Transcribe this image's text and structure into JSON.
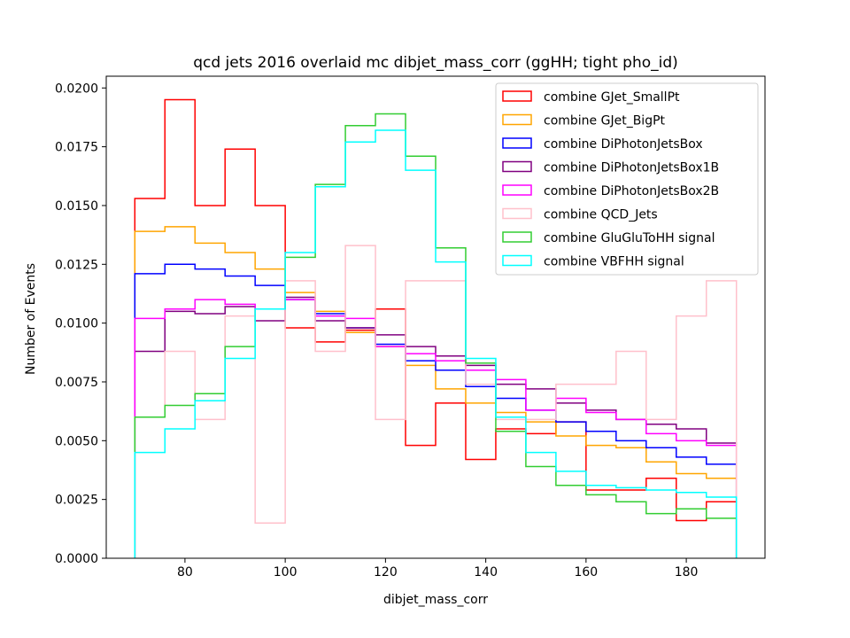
{
  "chart_data": {
    "type": "line",
    "drawstyle": "steps",
    "title": "qcd jets 2016 overlaid mc dibjet_mass_corr (ggHH; tight pho_id)",
    "xlabel": "dibjet_mass_corr",
    "ylabel": "Number of Events",
    "xlim": [
      64.3,
      195.7
    ],
    "ylim": [
      0,
      0.0205
    ],
    "xticks": [
      80,
      100,
      120,
      140,
      160,
      180
    ],
    "xtick_labels": [
      "80",
      "100",
      "120",
      "140",
      "160",
      "180"
    ],
    "yticks": [
      0,
      0.0025,
      0.005,
      0.0075,
      0.01,
      0.0125,
      0.015,
      0.0175,
      0.02
    ],
    "ytick_labels": [
      "0.0000",
      "0.0025",
      "0.0050",
      "0.0075",
      "0.0100",
      "0.0125",
      "0.0150",
      "0.0175",
      "0.0200"
    ],
    "grid": false,
    "legend_position": "top-right",
    "bin_edges": [
      70,
      76,
      82,
      88,
      94,
      100,
      106,
      112,
      118,
      124,
      130,
      136,
      142,
      148,
      154,
      160,
      166,
      172,
      178,
      184,
      190
    ],
    "series": [
      {
        "name": "combine GJet_SmallPt",
        "color": "#ff0000",
        "values": [
          0.0153,
          0.0195,
          0.015,
          0.0174,
          0.015,
          0.0098,
          0.0092,
          0.0097,
          0.0106,
          0.0048,
          0.0066,
          0.0042,
          0.0055,
          0.0053,
          0.0058,
          0.0029,
          0.0029,
          0.0034,
          0.0016,
          0.0024
        ]
      },
      {
        "name": "combine GJet_BigPt",
        "color": "#ffa500",
        "values": [
          0.0139,
          0.0141,
          0.0134,
          0.013,
          0.0123,
          0.0113,
          0.0105,
          0.0096,
          0.009,
          0.0082,
          0.0072,
          0.0066,
          0.0062,
          0.0058,
          0.0052,
          0.0048,
          0.0047,
          0.0041,
          0.0036,
          0.0034
        ]
      },
      {
        "name": "combine DiPhotonJetsBox",
        "color": "#0000ff",
        "values": [
          0.0121,
          0.0125,
          0.0123,
          0.012,
          0.0116,
          0.011,
          0.0104,
          0.0098,
          0.0091,
          0.0084,
          0.008,
          0.0073,
          0.0068,
          0.0063,
          0.0058,
          0.0054,
          0.005,
          0.0047,
          0.0043,
          0.004
        ]
      },
      {
        "name": "combine DiPhotonJetsBox1B",
        "color": "#800080",
        "values": [
          0.0088,
          0.0105,
          0.0104,
          0.0107,
          0.0101,
          0.0111,
          0.0101,
          0.0098,
          0.0095,
          0.009,
          0.0086,
          0.0082,
          0.0074,
          0.0072,
          0.0066,
          0.0063,
          0.0059,
          0.0057,
          0.0055,
          0.0049
        ]
      },
      {
        "name": "combine DiPhotonJetsBox2B",
        "color": "#ff00ff",
        "values": [
          0.0102,
          0.0106,
          0.011,
          0.0108,
          0.0106,
          0.011,
          0.0103,
          0.0102,
          0.009,
          0.0087,
          0.0084,
          0.008,
          0.0076,
          0.0063,
          0.0068,
          0.0062,
          0.0059,
          0.0053,
          0.005,
          0.0048
        ]
      },
      {
        "name": "combine QCD_Jets",
        "color": "#ffc0cb",
        "values": [
          0.006,
          0.0088,
          0.0059,
          0.0103,
          0.0015,
          0.0118,
          0.0088,
          0.0133,
          0.0059,
          0.0118,
          0.0118,
          0.0074,
          0.0059,
          0.0059,
          0.0074,
          0.0074,
          0.0088,
          0.0059,
          0.0103,
          0.0118
        ]
      },
      {
        "name": "combine GluGluToHH signal",
        "color": "#32cd32",
        "values": [
          0.006,
          0.0065,
          0.007,
          0.009,
          0.0106,
          0.0128,
          0.0159,
          0.0184,
          0.0189,
          0.0171,
          0.0132,
          0.0083,
          0.0054,
          0.0039,
          0.0031,
          0.0027,
          0.0024,
          0.0019,
          0.0021,
          0.0017
        ]
      },
      {
        "name": "combine VBFHH signal",
        "color": "#00ffff",
        "values": [
          0.0045,
          0.0055,
          0.0067,
          0.0085,
          0.0106,
          0.013,
          0.0158,
          0.0177,
          0.0182,
          0.0165,
          0.0126,
          0.0085,
          0.006,
          0.0045,
          0.0037,
          0.0031,
          0.003,
          0.0029,
          0.0028,
          0.0026
        ]
      }
    ]
  }
}
